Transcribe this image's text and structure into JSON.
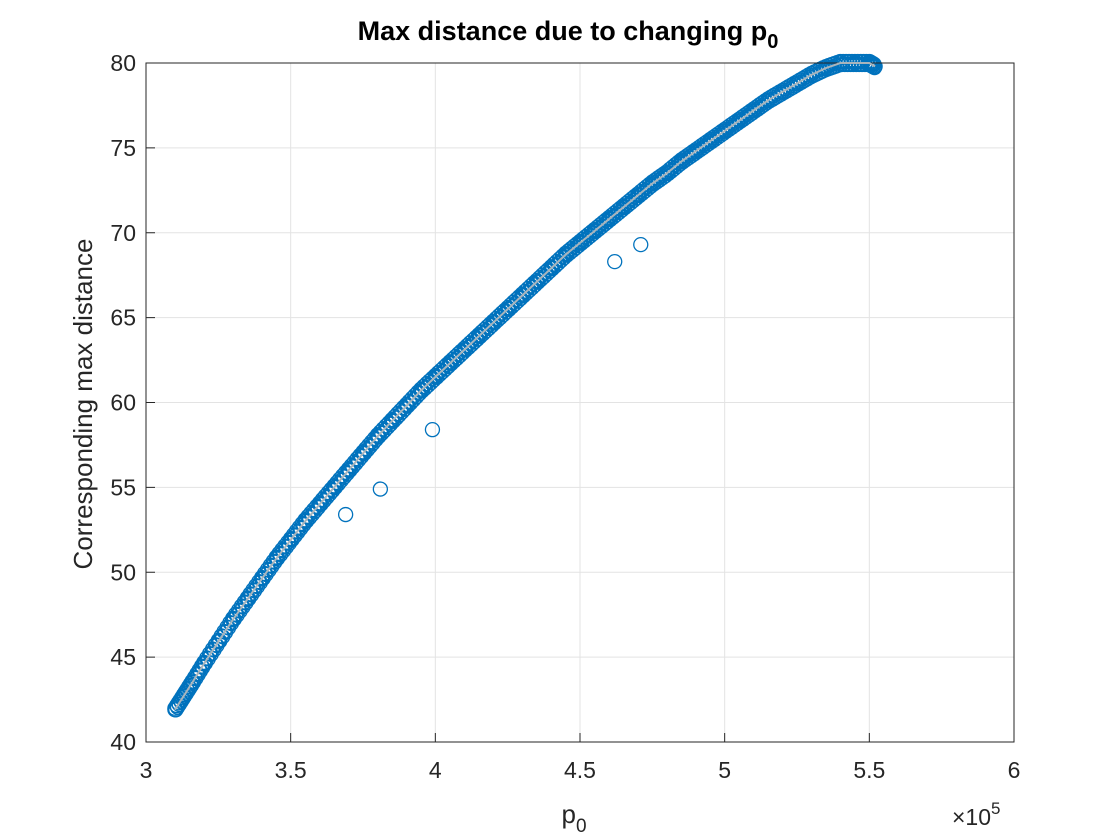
{
  "chart_data": {
    "type": "scatter",
    "title": "Max distance due to changing p",
    "title_subscript": "0",
    "xlabel": "p",
    "xlabel_subscript": "0",
    "ylabel": "Corresponding max distance",
    "x_exponent_prefix": "×10",
    "x_exponent": "5",
    "xlim": [
      3,
      6
    ],
    "ylim": [
      40,
      80
    ],
    "xticks": [
      3,
      3.5,
      4,
      4.5,
      5,
      5.5,
      6
    ],
    "xtick_labels": [
      "3",
      "3.5",
      "4",
      "4.5",
      "5",
      "5.5",
      "6"
    ],
    "yticks": [
      40,
      45,
      50,
      55,
      60,
      65,
      70,
      75,
      80
    ],
    "ytick_labels": [
      "40",
      "45",
      "50",
      "55",
      "60",
      "65",
      "70",
      "75",
      "80"
    ],
    "grid": true,
    "marker": "open-circle",
    "marker_color": "#0072BD",
    "fit_line_color": "#a8b4bc",
    "series": [
      {
        "x": [
          3.1,
          3.13,
          3.16,
          3.2,
          3.25,
          3.3,
          3.35,
          3.4,
          3.45,
          3.5,
          3.55,
          3.6,
          3.65,
          3.7,
          3.75,
          3.8,
          3.85,
          3.9,
          3.95,
          4.0,
          4.05,
          4.1,
          4.15,
          4.2,
          4.25,
          4.3,
          4.35,
          4.4,
          4.45,
          4.5,
          4.55,
          4.6,
          4.65,
          4.7,
          4.75,
          4.8,
          4.85,
          4.9,
          4.95,
          5.0,
          5.05,
          5.1,
          5.15,
          5.2,
          5.25,
          5.3,
          5.35,
          5.4,
          5.45,
          5.5,
          5.52,
          3.81,
          3.99,
          4.62,
          4.71,
          3.69
        ],
        "y": [
          41.9,
          42.7,
          43.5,
          44.6,
          45.9,
          47.2,
          48.4,
          49.6,
          50.8,
          51.9,
          53.0,
          54.0,
          55.0,
          56.0,
          57.0,
          58.0,
          58.9,
          59.8,
          60.7,
          61.5,
          62.3,
          63.1,
          63.9,
          64.7,
          65.5,
          66.3,
          67.1,
          67.9,
          68.7,
          69.4,
          70.1,
          70.8,
          71.5,
          72.2,
          72.9,
          73.5,
          74.2,
          74.8,
          75.4,
          76.0,
          76.6,
          77.2,
          77.8,
          78.3,
          78.8,
          79.3,
          79.7,
          80.1,
          80.5,
          80.0,
          79.8,
          54.9,
          58.4,
          68.3,
          69.3,
          53.4
        ]
      }
    ]
  }
}
